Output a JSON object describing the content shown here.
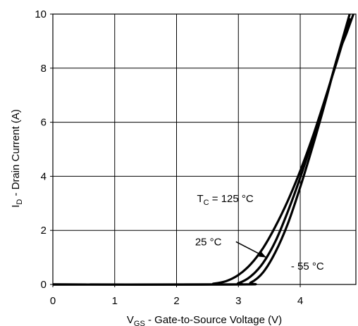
{
  "chart_data": {
    "type": "line",
    "xlabel": {
      "main": "V",
      "sub": "GS",
      "rest": " - Gate-to-Source Voltage (V)"
    },
    "ylabel": {
      "main": "I",
      "sub": "D",
      "rest": " - Drain Current (A)"
    },
    "xlim": [
      0,
      4.9
    ],
    "ylim": [
      0,
      10
    ],
    "xticks": [
      0,
      1,
      2,
      3,
      4
    ],
    "yticks": [
      0,
      2,
      4,
      6,
      8,
      10
    ],
    "grid": true,
    "series": [
      {
        "name": "T_C = 125 °C",
        "x": [
          0,
          2.4,
          2.6,
          2.8,
          3.0,
          3.2,
          3.4,
          3.6,
          3.8,
          4.0,
          4.2,
          4.4,
          4.6,
          4.8
        ],
        "y": [
          0,
          0,
          0.03,
          0.12,
          0.35,
          0.75,
          1.35,
          2.15,
          3.1,
          4.2,
          5.45,
          6.85,
          8.3,
          9.85
        ]
      },
      {
        "name": "25 °C",
        "x": [
          0,
          2.8,
          3.0,
          3.2,
          3.4,
          3.6,
          3.8,
          4.0,
          4.2,
          4.4,
          4.6,
          4.8
        ],
        "y": [
          0,
          0,
          0.05,
          0.3,
          0.8,
          1.6,
          2.7,
          3.95,
          5.35,
          6.8,
          8.4,
          10.0
        ]
      },
      {
        "name": "- 55 °C",
        "x": [
          0,
          3.0,
          3.2,
          3.4,
          3.6,
          3.8,
          4.0,
          4.2,
          4.4,
          4.6,
          4.75,
          4.86
        ],
        "y": [
          0,
          0,
          0.07,
          0.45,
          1.2,
          2.25,
          3.6,
          5.1,
          6.7,
          8.4,
          9.3,
          10.0
        ]
      }
    ],
    "annotations": [
      {
        "text_main": "T",
        "text_sub": "C",
        "text_rest": " = 125 °C",
        "x": 2.33,
        "y": 3.05
      },
      {
        "text": "25 °C",
        "x": 2.3,
        "y": 1.45,
        "arrow_to": [
          3.45,
          1.0
        ]
      },
      {
        "text": "- 55 °C",
        "x": 3.85,
        "y": 0.55
      }
    ]
  }
}
